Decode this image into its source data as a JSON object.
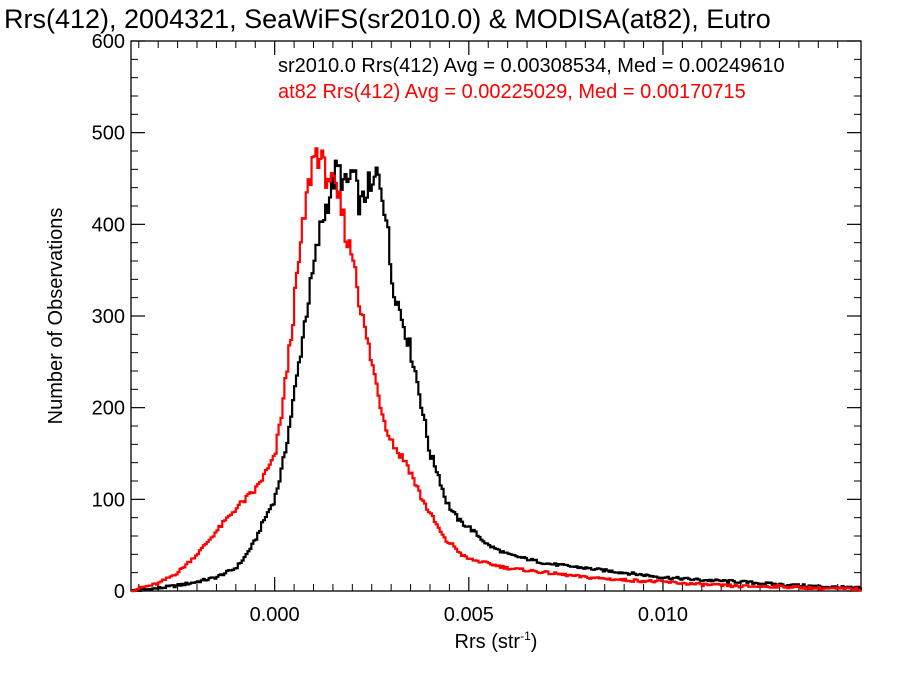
{
  "chart_data": {
    "type": "line",
    "step": true,
    "title": "Rrs(412), 2004321, SeaWiFS(sr2010.0) & MODISA(at82), Eutro",
    "xlabel": "Rrs (str",
    "xlabel_sup": "-1",
    "xlabel_close": ")",
    "ylabel": "Number of Observations",
    "xlim": [
      -0.0037,
      0.0151
    ],
    "ylim": [
      0,
      600
    ],
    "x_ticks": [
      {
        "value": 0.0,
        "label": "0.000"
      },
      {
        "value": 0.005,
        "label": "0.005"
      },
      {
        "value": 0.01,
        "label": "0.010"
      }
    ],
    "y_ticks": [
      {
        "value": 0,
        "label": "0"
      },
      {
        "value": 100,
        "label": "100"
      },
      {
        "value": 200,
        "label": "200"
      },
      {
        "value": 300,
        "label": "300"
      },
      {
        "value": 400,
        "label": "400"
      },
      {
        "value": 500,
        "label": "500"
      },
      {
        "value": 600,
        "label": "600"
      }
    ],
    "series": [
      {
        "name": "sr2010.0",
        "color": "#000000",
        "legend": "sr2010.0 Rrs(412) Avg = 0.00308534, Med = 0.00249610",
        "x": [
          -0.0037,
          -0.003,
          -0.0025,
          -0.002,
          -0.0015,
          -0.001,
          -0.0008,
          -0.0005,
          -0.0003,
          0.0,
          0.0002,
          0.0004,
          0.0006,
          0.0008,
          0.001,
          0.0012,
          0.0014,
          0.0016,
          0.0017,
          0.0018,
          0.0019,
          0.002,
          0.0021,
          0.0022,
          0.0023,
          0.0024,
          0.0025,
          0.0026,
          0.0027,
          0.0028,
          0.0029,
          0.003,
          0.0032,
          0.0034,
          0.0036,
          0.0038,
          0.004,
          0.0042,
          0.0044,
          0.0046,
          0.0048,
          0.005,
          0.0055,
          0.006,
          0.007,
          0.008,
          0.009,
          0.01,
          0.011,
          0.012,
          0.013,
          0.014,
          0.0151
        ],
        "y": [
          0,
          3,
          6,
          10,
          15,
          25,
          35,
          55,
          75,
          100,
          135,
          185,
          240,
          300,
          350,
          400,
          430,
          460,
          455,
          440,
          445,
          458,
          440,
          420,
          425,
          445,
          430,
          455,
          450,
          430,
          400,
          345,
          310,
          280,
          245,
          200,
          150,
          130,
          100,
          85,
          75,
          70,
          50,
          40,
          30,
          25,
          20,
          15,
          12,
          10,
          7,
          5,
          3
        ]
      },
      {
        "name": "at82",
        "color": "#ff0000",
        "legend": "at82 Rrs(412) Avg = 0.00225029, Med = 0.00170715",
        "x": [
          -0.0037,
          -0.0035,
          -0.003,
          -0.0025,
          -0.002,
          -0.0015,
          -0.001,
          -0.0005,
          0.0,
          0.0002,
          0.0004,
          0.0006,
          0.0008,
          0.001,
          0.0011,
          0.0012,
          0.0013,
          0.0014,
          0.0015,
          0.0016,
          0.0017,
          0.0018,
          0.0019,
          0.002,
          0.0021,
          0.0022,
          0.0024,
          0.0026,
          0.0028,
          0.003,
          0.0032,
          0.0034,
          0.0036,
          0.0038,
          0.004,
          0.0042,
          0.0044,
          0.0046,
          0.0048,
          0.005,
          0.0055,
          0.006,
          0.007,
          0.008,
          0.009,
          0.01,
          0.011,
          0.012,
          0.013,
          0.014,
          0.0151
        ],
        "y": [
          0,
          3,
          8,
          20,
          40,
          65,
          90,
          110,
          145,
          200,
          270,
          350,
          420,
          475,
          480,
          470,
          455,
          455,
          440,
          430,
          420,
          400,
          375,
          370,
          350,
          310,
          270,
          230,
          190,
          165,
          150,
          140,
          120,
          100,
          85,
          70,
          55,
          50,
          40,
          35,
          30,
          25,
          20,
          15,
          12,
          10,
          7,
          5,
          5,
          3,
          2
        ]
      }
    ]
  }
}
